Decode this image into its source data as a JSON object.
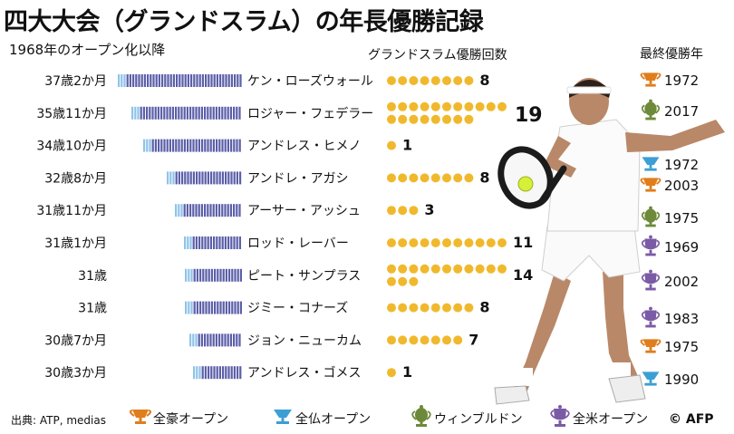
{
  "title": "四大大会（グランドスラム）の年長優勝記録",
  "subtitle": "1968年のオープン化以降",
  "col_wins_label": "グランドスラム優勝回数",
  "col_year_label": "最終優勝年",
  "colors": {
    "bar": "#5b5fa8",
    "bar_light": "#8fc3e8",
    "dot": "#f0b92d",
    "australian": "#e07d1c",
    "french": "#3b9fd5",
    "wimbledon": "#6d8a3a",
    "us": "#7b5aa6"
  },
  "chart_data": {
    "type": "bar",
    "title": "四大大会（グランドスラム）の年長優勝記録",
    "subtitle": "1968年のオープン化以降",
    "categories": [
      "ケン・ローズウォール",
      "ロジャー・フェデラー",
      "アンドレス・ヒメノ",
      "アンドレ・アガシ",
      "アーサー・アッシュ",
      "ロッド・レーバー",
      "ピート・サンプラス",
      "ジミー・コナーズ",
      "ジョン・ニューカム",
      "アンドレス・ゴメス"
    ],
    "age_labels": [
      "37歳2か月",
      "35歳11か月",
      "34歳10か月",
      "32歳8か月",
      "31歳11か月",
      "31歳1か月",
      "31歳",
      "31歳",
      "30歳7か月",
      "30歳3か月"
    ],
    "age_months": [
      446,
      431,
      418,
      392,
      383,
      373,
      372,
      372,
      367,
      363
    ],
    "series": [
      {
        "name": "グランドスラム優勝回数",
        "values": [
          8,
          19,
          1,
          8,
          3,
          11,
          14,
          8,
          7,
          1
        ]
      }
    ],
    "last_win": [
      {
        "year": "1972",
        "tournament": "australian"
      },
      {
        "year": "2017",
        "tournament": "wimbledon"
      },
      {
        "year": "1972",
        "tournament": "french"
      },
      {
        "year": "2003",
        "tournament": "australian"
      },
      {
        "year": "1975",
        "tournament": "wimbledon"
      },
      {
        "year": "1969",
        "tournament": "us"
      },
      {
        "year": "2002",
        "tournament": "us"
      },
      {
        "year": "1983",
        "tournament": "us"
      },
      {
        "year": "1975",
        "tournament": "australian"
      },
      {
        "year": "1990",
        "tournament": "french"
      }
    ]
  },
  "legend": [
    {
      "key": "australian",
      "label": "全豪オープン"
    },
    {
      "key": "french",
      "label": "全仏オープン"
    },
    {
      "key": "wimbledon",
      "label": "ウィンブルドン"
    },
    {
      "key": "us",
      "label": "全米オープン"
    }
  ],
  "source": "出典: ATP, medias",
  "credit": "© AFP"
}
